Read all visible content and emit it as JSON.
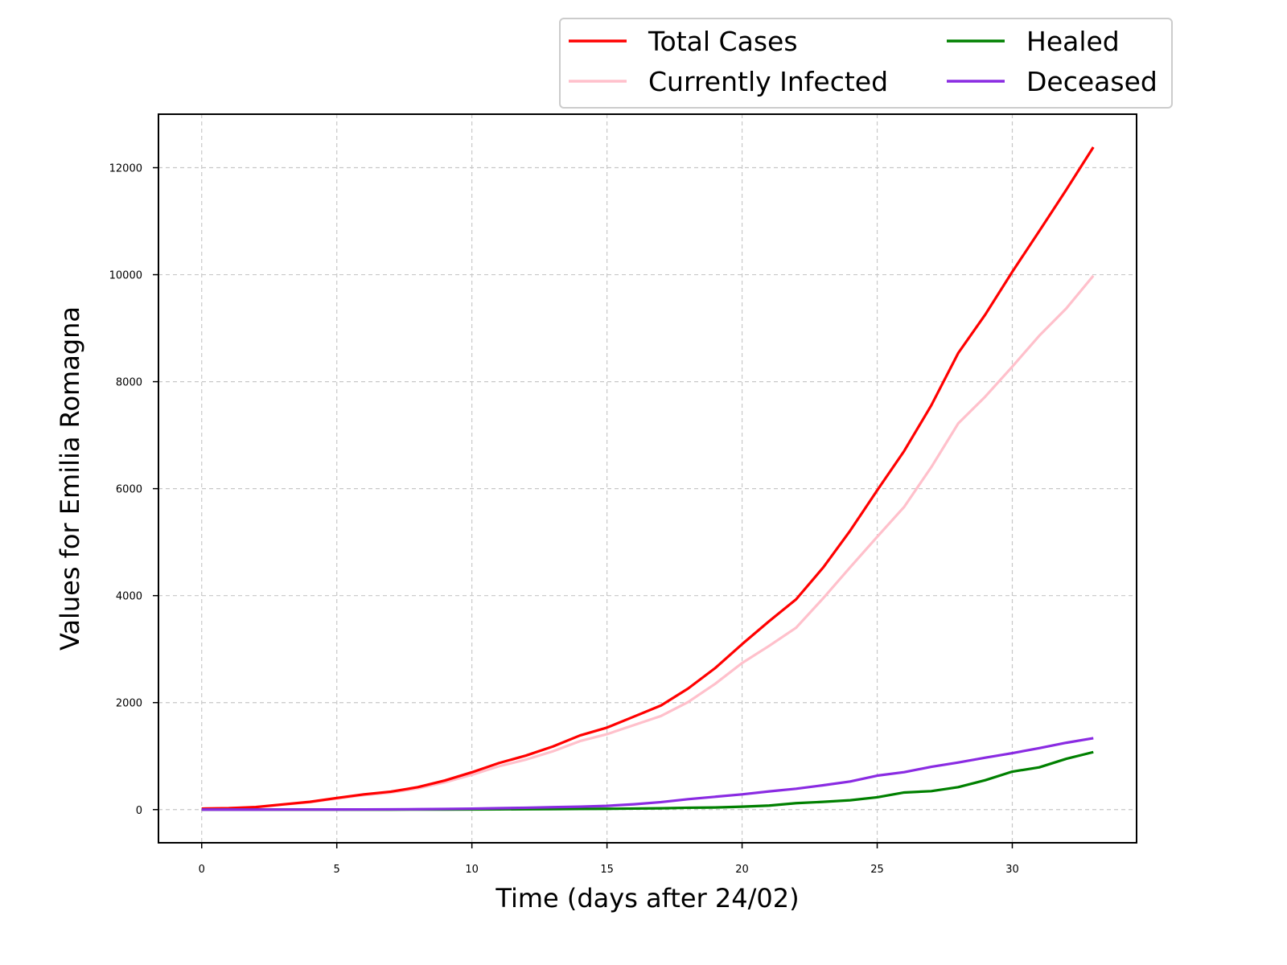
{
  "chart_data": {
    "type": "line",
    "xlabel": "Time (days after 24/02)",
    "ylabel": "Values for Emilia Romagna",
    "xlim": [
      -1.6,
      34.6
    ],
    "ylim": [
      -620,
      13000
    ],
    "xticks": [
      0,
      5,
      10,
      15,
      20,
      25,
      30
    ],
    "yticks": [
      0,
      2000,
      4000,
      6000,
      8000,
      10000,
      12000
    ],
    "grid": true,
    "legend_position": "top-right, above plot",
    "legend_columns": 2,
    "x": [
      0,
      1,
      2,
      3,
      4,
      5,
      6,
      7,
      8,
      9,
      10,
      11,
      12,
      13,
      14,
      15,
      16,
      17,
      18,
      19,
      20,
      21,
      22,
      23,
      24,
      25,
      26,
      27,
      28,
      29,
      30,
      31,
      32,
      33
    ],
    "series": [
      {
        "name": "Total Cases",
        "color": "#ff0000",
        "values": [
          18,
          26,
          47,
          97,
          145,
          217,
          285,
          335,
          420,
          544,
          698,
          870,
          1010,
          1180,
          1386,
          1533,
          1739,
          1947,
          2263,
          2644,
          3093,
          3522,
          3931,
          4525,
          5214,
          5968,
          6705,
          7555,
          8535,
          9254,
          10054,
          10816,
          11588,
          12383
        ]
      },
      {
        "name": "Currently Infected",
        "color": "#ffc0cb",
        "values": [
          18,
          25,
          45,
          94,
          138,
          206,
          270,
          318,
          395,
          510,
          650,
          810,
          935,
          1090,
          1280,
          1410,
          1580,
          1750,
          2010,
          2350,
          2740,
          3060,
          3400,
          3950,
          4530,
          5100,
          5660,
          6400,
          7220,
          7720,
          8280,
          8860,
          9370,
          9980
        ]
      },
      {
        "name": "Healed",
        "color": "#008000",
        "values": [
          0,
          0,
          0,
          0,
          0,
          0,
          0,
          0,
          2,
          2,
          3,
          5,
          8,
          10,
          12,
          15,
          20,
          25,
          35,
          40,
          55,
          75,
          120,
          145,
          175,
          230,
          320,
          345,
          420,
          550,
          710,
          790,
          950,
          1075
        ]
      },
      {
        "name": "Deceased",
        "color": "#8a2be2",
        "values": [
          0,
          0,
          0,
          1,
          1,
          2,
          3,
          5,
          8,
          12,
          18,
          26,
          35,
          45,
          55,
          70,
          100,
          140,
          195,
          240,
          285,
          340,
          390,
          455,
          525,
          635,
          700,
          800,
          880,
          970,
          1055,
          1150,
          1250,
          1335
        ]
      }
    ]
  }
}
